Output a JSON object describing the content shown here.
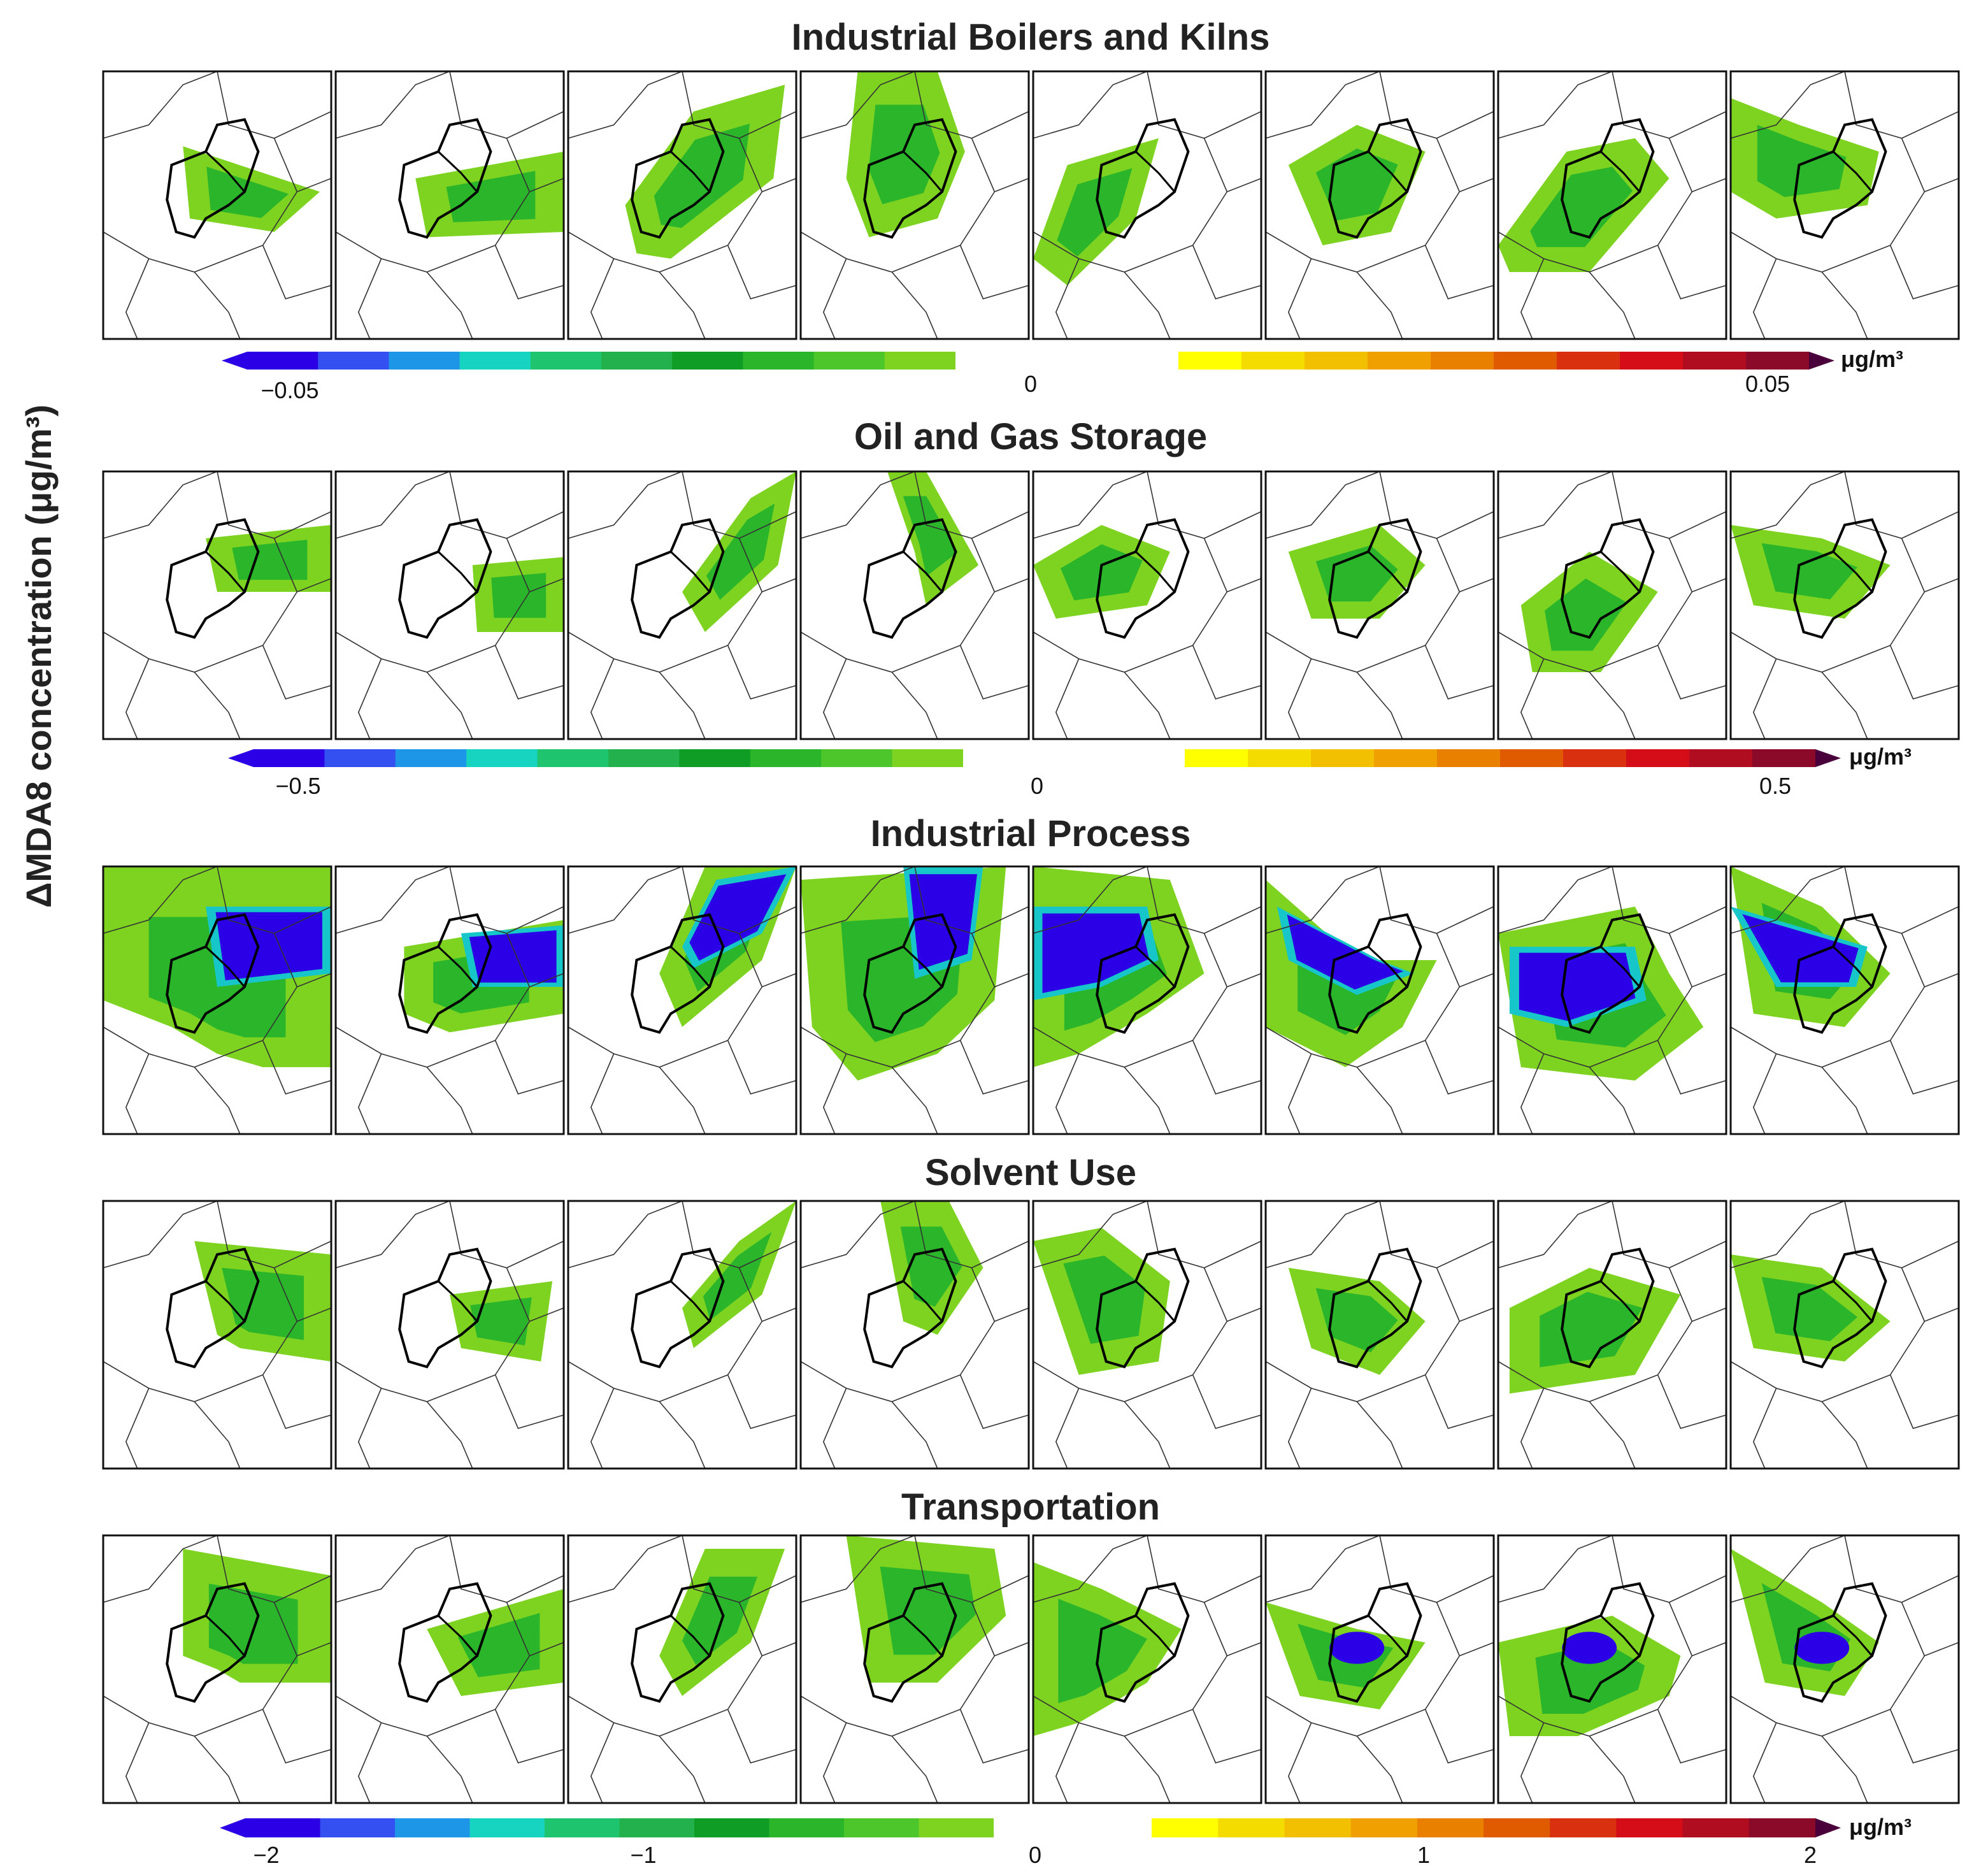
{
  "chart_data": {
    "type": "heatmap",
    "ylabel": "ΔMDA8 concentration (μg/m³)",
    "panels_per_row": 8,
    "rows": [
      {
        "title": "Industrial Boilers and Kilns",
        "colorbar": {
          "min": -0.05,
          "max": 0.05,
          "ticks": [
            -0.05,
            0,
            0.05
          ],
          "tick_labels": [
            "−0.05",
            "0",
            "0.05"
          ],
          "unit": "μg/m³"
        }
      },
      {
        "title": "Oil and Gas Storage",
        "colorbar": {
          "min": -0.5,
          "max": 0.5,
          "ticks": [
            -0.5,
            0,
            0.5
          ],
          "tick_labels": [
            "−0.5",
            "0",
            "0.5"
          ],
          "unit": "μg/m³"
        }
      },
      {
        "title": "Industrial Process",
        "colorbar": null
      },
      {
        "title": "Solvent Use",
        "colorbar": null
      },
      {
        "title": "Transportation",
        "colorbar": {
          "min": -2,
          "max": 2,
          "ticks": [
            -2,
            -1,
            0,
            1,
            2
          ],
          "tick_labels": [
            "−2",
            "−1",
            "0",
            "1",
            "2"
          ],
          "unit": "μg/m³"
        }
      }
    ],
    "colormap_negative": [
      "#2b00e6",
      "#3450f0",
      "#1e96e8",
      "#17d4c0",
      "#1ec46e",
      "#22b14c",
      "#0f9d25",
      "#2bb52a",
      "#4cc62a",
      "#7ed321"
    ],
    "colormap_positive": [
      "#ffff00",
      "#f5dc00",
      "#f2c000",
      "#f0a000",
      "#ea8000",
      "#e05a00",
      "#d93010",
      "#d40d18",
      "#b00d20",
      "#8b0a2a",
      "#4a003a"
    ],
    "color_neutral": "#ffffff"
  }
}
